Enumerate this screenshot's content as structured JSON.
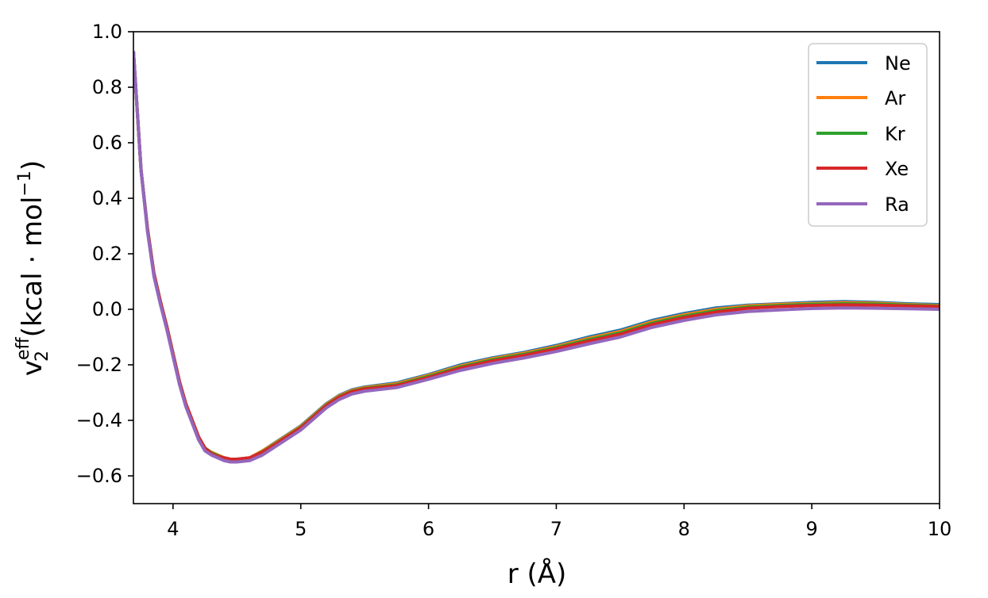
{
  "chart_data": {
    "type": "line",
    "xlabel": "r (Å)",
    "ylabel": {
      "base": "v",
      "sub": "2",
      "sup": "eff",
      "unit_prefix": "(kcal · mol",
      "unit_sup": "−1",
      "unit_suffix": ")"
    },
    "xlim": [
      3.69,
      10
    ],
    "ylim": [
      -0.7,
      1.0
    ],
    "x_ticks": [
      4,
      5,
      6,
      7,
      8,
      9,
      10
    ],
    "x_tick_labels": [
      "4",
      "5",
      "6",
      "7",
      "8",
      "9",
      "10"
    ],
    "y_ticks": [
      1.0,
      0.8,
      0.6,
      0.4,
      0.2,
      0.0,
      -0.2,
      -0.4,
      -0.6
    ],
    "y_tick_labels": [
      "1.0",
      "0.8",
      "0.6",
      "0.4",
      "0.2",
      "0.0",
      "−0.2",
      "−0.4",
      "−0.6"
    ],
    "grid": false,
    "legend_position": "top-right",
    "x": [
      3.69,
      3.75,
      3.8,
      3.85,
      3.9,
      3.95,
      4.0,
      4.05,
      4.1,
      4.15,
      4.2,
      4.25,
      4.3,
      4.35,
      4.4,
      4.45,
      4.5,
      4.6,
      4.7,
      4.8,
      4.9,
      5.0,
      5.1,
      5.2,
      5.3,
      5.4,
      5.5,
      5.75,
      6.0,
      6.25,
      6.5,
      6.75,
      7.0,
      7.25,
      7.5,
      7.75,
      8.0,
      8.25,
      8.5,
      8.75,
      9.0,
      9.25,
      9.5,
      9.75,
      10.0
    ],
    "series": [
      {
        "name": "Ne",
        "color": "#1f77b4",
        "values": [
          0.93,
          0.5,
          0.29,
          0.13,
          0.03,
          -0.06,
          -0.16,
          -0.26,
          -0.34,
          -0.4,
          -0.46,
          -0.5,
          -0.515,
          -0.525,
          -0.535,
          -0.54,
          -0.54,
          -0.535,
          -0.51,
          -0.48,
          -0.45,
          -0.42,
          -0.38,
          -0.34,
          -0.31,
          -0.29,
          -0.28,
          -0.265,
          -0.235,
          -0.2,
          -0.175,
          -0.155,
          -0.13,
          -0.1,
          -0.075,
          -0.04,
          -0.015,
          0.005,
          0.015,
          0.02,
          0.025,
          0.028,
          0.025,
          0.02,
          0.017
        ]
      },
      {
        "name": "Ar",
        "color": "#ff7f0e",
        "values": [
          0.93,
          0.5,
          0.29,
          0.13,
          0.03,
          -0.06,
          -0.16,
          -0.26,
          -0.34,
          -0.4,
          -0.46,
          -0.5,
          -0.515,
          -0.525,
          -0.535,
          -0.54,
          -0.54,
          -0.535,
          -0.51,
          -0.482,
          -0.452,
          -0.422,
          -0.382,
          -0.342,
          -0.312,
          -0.292,
          -0.282,
          -0.268,
          -0.238,
          -0.204,
          -0.178,
          -0.158,
          -0.134,
          -0.105,
          -0.08,
          -0.045,
          -0.02,
          0.0,
          0.012,
          0.018,
          0.021,
          0.024,
          0.022,
          0.017,
          0.014
        ]
      },
      {
        "name": "Kr",
        "color": "#2ca02c",
        "values": [
          0.93,
          0.5,
          0.29,
          0.13,
          0.03,
          -0.06,
          -0.16,
          -0.26,
          -0.34,
          -0.4,
          -0.46,
          -0.5,
          -0.517,
          -0.527,
          -0.537,
          -0.542,
          -0.542,
          -0.537,
          -0.513,
          -0.485,
          -0.455,
          -0.425,
          -0.385,
          -0.345,
          -0.315,
          -0.295,
          -0.285,
          -0.272,
          -0.242,
          -0.208,
          -0.182,
          -0.162,
          -0.138,
          -0.11,
          -0.085,
          -0.05,
          -0.025,
          -0.005,
          0.008,
          0.014,
          0.018,
          0.02,
          0.019,
          0.015,
          0.012
        ]
      },
      {
        "name": "Xe",
        "color": "#d62728",
        "values": [
          0.93,
          0.5,
          0.29,
          0.13,
          0.03,
          -0.06,
          -0.16,
          -0.26,
          -0.34,
          -0.4,
          -0.46,
          -0.5,
          -0.52,
          -0.53,
          -0.535,
          -0.54,
          -0.54,
          -0.535,
          -0.515,
          -0.487,
          -0.457,
          -0.427,
          -0.387,
          -0.347,
          -0.317,
          -0.297,
          -0.287,
          -0.275,
          -0.246,
          -0.212,
          -0.186,
          -0.166,
          -0.142,
          -0.115,
          -0.09,
          -0.055,
          -0.03,
          -0.01,
          0.004,
          0.01,
          0.014,
          0.016,
          0.015,
          0.012,
          0.01
        ]
      },
      {
        "name": "Ra",
        "color": "#9467bd",
        "values": [
          0.93,
          0.5,
          0.28,
          0.12,
          0.02,
          -0.07,
          -0.17,
          -0.27,
          -0.35,
          -0.41,
          -0.47,
          -0.51,
          -0.525,
          -0.535,
          -0.545,
          -0.55,
          -0.55,
          -0.545,
          -0.525,
          -0.495,
          -0.465,
          -0.435,
          -0.395,
          -0.355,
          -0.325,
          -0.305,
          -0.295,
          -0.282,
          -0.252,
          -0.22,
          -0.195,
          -0.175,
          -0.152,
          -0.125,
          -0.1,
          -0.065,
          -0.04,
          -0.02,
          -0.008,
          -0.002,
          0.003,
          0.005,
          0.004,
          0.002,
          0.0
        ]
      }
    ]
  }
}
